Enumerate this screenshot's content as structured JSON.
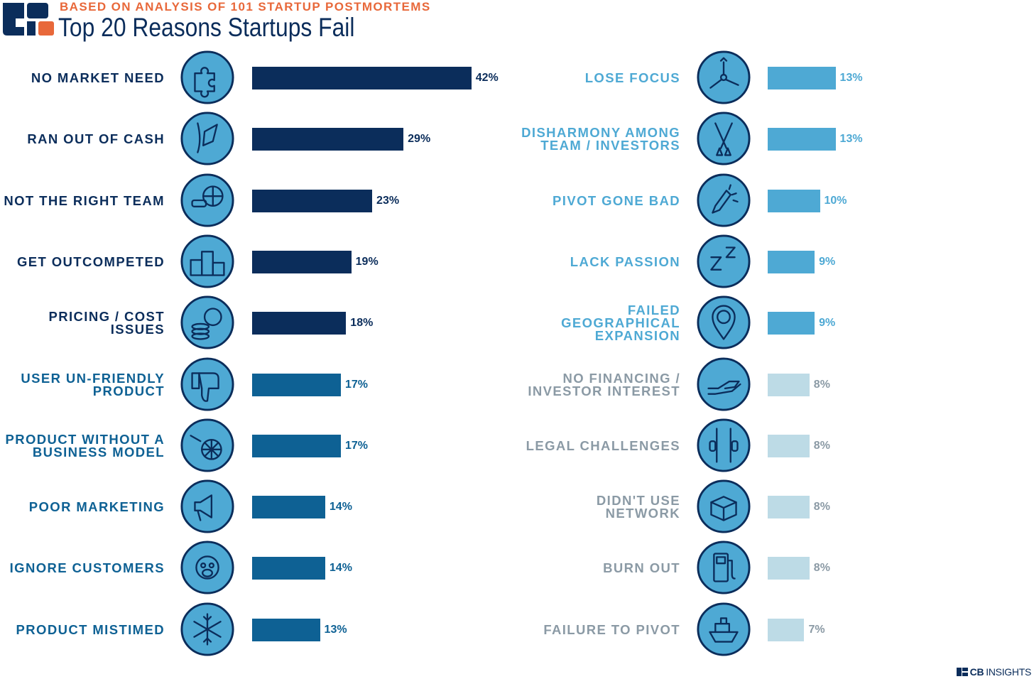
{
  "header": {
    "subtitle": "BASED ON ANALYSIS OF 101 STARTUP POSTMORTEMS",
    "title": "Top 20 Reasons Startups Fail"
  },
  "brand": {
    "cb": "CB",
    "insights": "INSIGHTS"
  },
  "colors": {
    "navy": "#0b2d5b",
    "mid_blue": "#0e6194",
    "light_blue": "#4ea9d4",
    "pale_blue": "#bddbe6",
    "gray_text": "#8b9aa5",
    "icon_fill": "#4ea9d4",
    "orange": "#e8683a"
  },
  "chart_data": {
    "type": "bar",
    "title": "Top 20 Reasons Startups Fail",
    "subtitle": "BASED ON ANALYSIS OF 101 STARTUP POSTMORTEMS",
    "unit": "%",
    "categories": [
      "NO MARKET NEED",
      "RAN OUT OF CASH",
      "NOT THE RIGHT TEAM",
      "GET OUTCOMPETED",
      "PRICING / COST ISSUES",
      "USER UN-FRIENDLY PRODUCT",
      "PRODUCT WITHOUT A BUSINESS MODEL",
      "POOR MARKETING",
      "IGNORE CUSTOMERS",
      "PRODUCT MISTIMED",
      "LOSE FOCUS",
      "DISHARMONY AMONG TEAM / INVESTORS",
      "PIVOT GONE BAD",
      "LACK PASSION",
      "FAILED GEOGRAPHICAL EXPANSION",
      "NO FINANCING / INVESTOR INTEREST",
      "LEGAL CHALLENGES",
      "DIDN'T USE NETWORK",
      "BURN OUT",
      "FAILURE TO PIVOT"
    ],
    "values": [
      42,
      29,
      23,
      19,
      18,
      17,
      17,
      14,
      14,
      13,
      13,
      13,
      10,
      9,
      9,
      8,
      8,
      8,
      8,
      7
    ],
    "items": [
      {
        "label": "NO MARKET NEED",
        "value": 42,
        "value_label": "42%",
        "icon": "puzzle-icon",
        "tier": "navy"
      },
      {
        "label": "RAN OUT OF CASH",
        "value": 29,
        "value_label": "29%",
        "icon": "empty-pocket-icon",
        "tier": "navy"
      },
      {
        "label": "NOT THE RIGHT TEAM",
        "value": 23,
        "value_label": "23%",
        "icon": "team-globe-icon",
        "tier": "navy"
      },
      {
        "label": "GET OUTCOMPETED",
        "value": 19,
        "value_label": "19%",
        "icon": "podium-icon",
        "tier": "navy"
      },
      {
        "label": "PRICING / COST ISSUES",
        "value": 18,
        "value_label": "18%",
        "icon": "coins-icon",
        "tier": "navy"
      },
      {
        "label": "USER UN-FRIENDLY\nPRODUCT",
        "value": 17,
        "value_label": "17%",
        "icon": "thumbs-down-icon",
        "tier": "mid"
      },
      {
        "label": "PRODUCT WITHOUT A\nBUSINESS MODEL",
        "value": 17,
        "value_label": "17%",
        "icon": "cart-wheel-icon",
        "tier": "mid"
      },
      {
        "label": "POOR MARKETING",
        "value": 14,
        "value_label": "14%",
        "icon": "megaphone-icon",
        "tier": "mid"
      },
      {
        "label": "IGNORE CUSTOMERS",
        "value": 14,
        "value_label": "14%",
        "icon": "monkey-icon",
        "tier": "mid"
      },
      {
        "label": "PRODUCT MISTIMED",
        "value": 13,
        "value_label": "13%",
        "icon": "snowflake-icon",
        "tier": "mid"
      },
      {
        "label": "LOSE FOCUS",
        "value": 13,
        "value_label": "13%",
        "icon": "arrows-scatter-icon",
        "tier": "light"
      },
      {
        "label": "DISHARMONY AMONG\nTEAM / INVESTORS",
        "value": 13,
        "value_label": "13%",
        "icon": "oars-icon",
        "tier": "light"
      },
      {
        "label": "PIVOT GONE BAD",
        "value": 10,
        "value_label": "10%",
        "icon": "broken-pencil-icon",
        "tier": "light"
      },
      {
        "label": "LACK PASSION",
        "value": 9,
        "value_label": "9%",
        "icon": "zzz-icon",
        "tier": "light"
      },
      {
        "label": "FAILED GEOGRAPHICAL\nEXPANSION",
        "value": 9,
        "value_label": "9%",
        "icon": "map-pin-question-icon",
        "tier": "light"
      },
      {
        "label": "NO FINANCING /\nINVESTOR INTEREST",
        "value": 8,
        "value_label": "8%",
        "icon": "open-hand-icon",
        "tier": "pale"
      },
      {
        "label": "LEGAL CHALLENGES",
        "value": 8,
        "value_label": "8%",
        "icon": "jail-bars-icon",
        "tier": "pale"
      },
      {
        "label": "DIDN'T USE\nNETWORK",
        "value": 8,
        "value_label": "8%",
        "icon": "box-icon",
        "tier": "pale"
      },
      {
        "label": "BURN OUT",
        "value": 8,
        "value_label": "8%",
        "icon": "fuel-pump-icon",
        "tier": "pale"
      },
      {
        "label": "FAILURE TO PIVOT",
        "value": 7,
        "value_label": "7%",
        "icon": "ship-icon",
        "tier": "pale"
      }
    ]
  }
}
